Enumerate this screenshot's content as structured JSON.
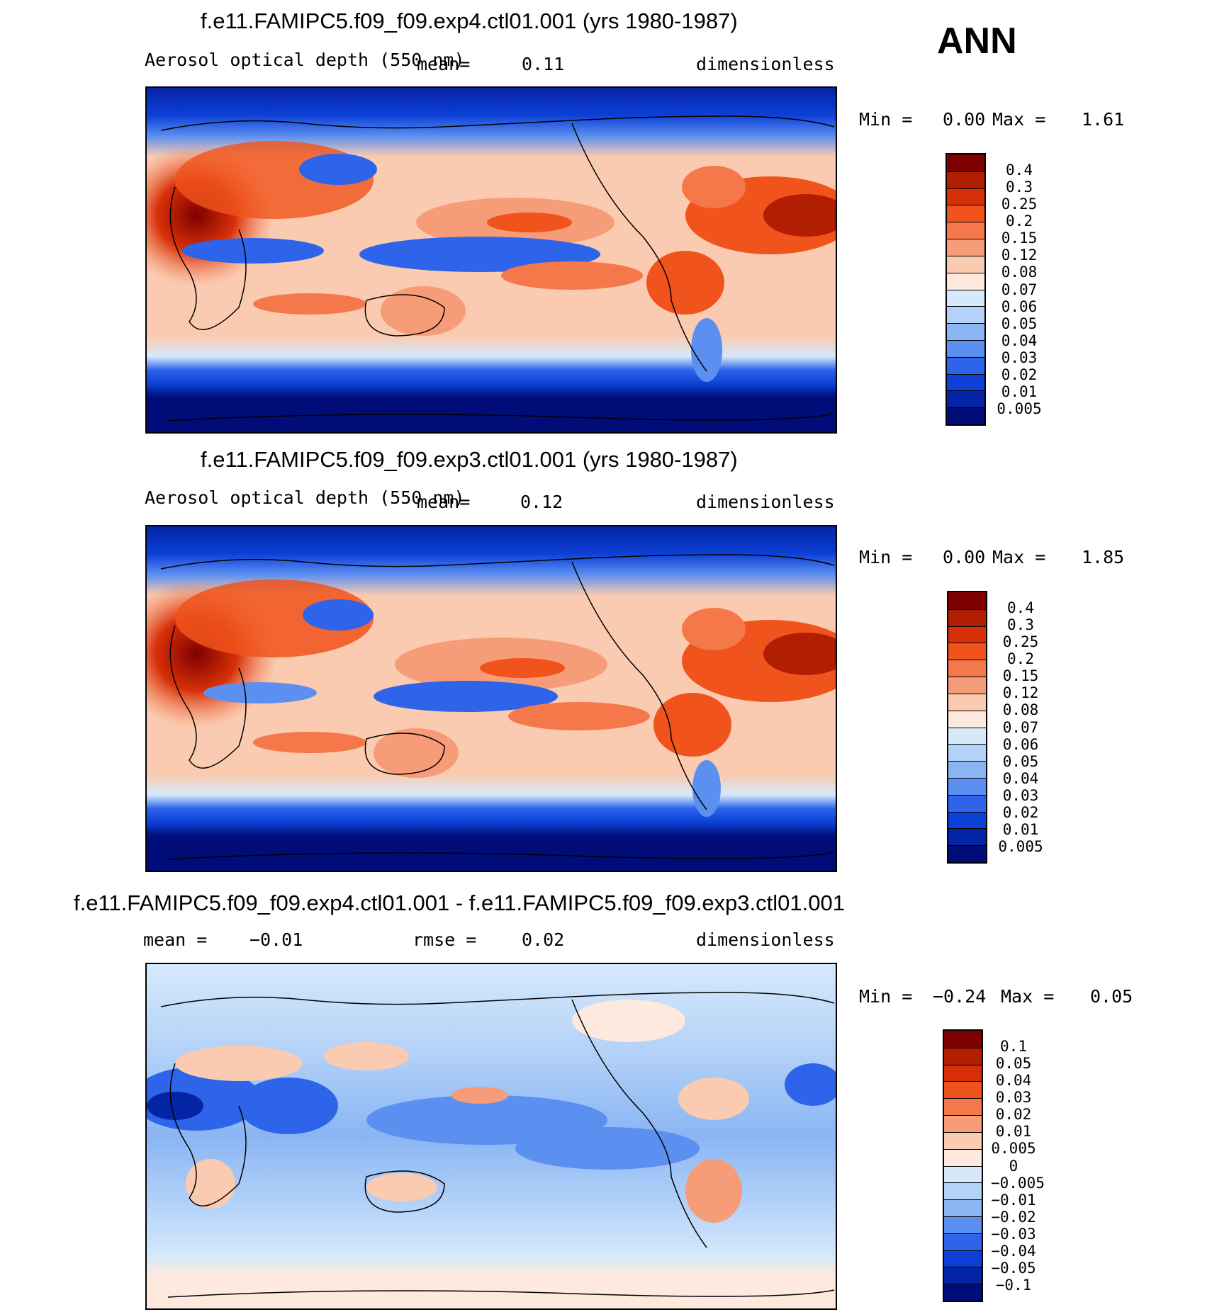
{
  "season": "ANN",
  "panels": [
    {
      "title": "f.e11.FAMIPC5.f09_f09.exp4.ctl01.001 (yrs 1980-1987)",
      "field_label": "Aerosol optical depth (550 nm)",
      "mean_label": "mean=",
      "mean_value": "0.11",
      "units": "dimensionless",
      "min_label": "Min =",
      "min_value": "0.00",
      "max_label": "Max =",
      "max_value": "1.61",
      "colorbar": {
        "labels": [
          "0.4",
          "0.3",
          "0.25",
          "0.2",
          "0.15",
          "0.12",
          "0.08",
          "0.07",
          "0.06",
          "0.05",
          "0.04",
          "0.03",
          "0.02",
          "0.01",
          "0.005"
        ],
        "colors": [
          "#7f0000",
          "#b21e02",
          "#d73008",
          "#f0541c",
          "#f5784a",
          "#f79c78",
          "#facbb0",
          "#fde9dd",
          "#d6e9fb",
          "#b4d2f8",
          "#8ab5f3",
          "#5b8ff0",
          "#2d64ea",
          "#0d40d6",
          "#0424a6",
          "#000d78"
        ]
      }
    },
    {
      "title": "f.e11.FAMIPC5.f09_f09.exp3.ctl01.001 (yrs 1980-1987)",
      "field_label": "Aerosol optical depth (550 nm)",
      "mean_label": "mean=",
      "mean_value": "0.12",
      "units": "dimensionless",
      "min_label": "Min =",
      "min_value": "0.00",
      "max_label": "Max =",
      "max_value": "1.85",
      "colorbar": {
        "labels": [
          "0.4",
          "0.3",
          "0.25",
          "0.2",
          "0.15",
          "0.12",
          "0.08",
          "0.07",
          "0.06",
          "0.05",
          "0.04",
          "0.03",
          "0.02",
          "0.01",
          "0.005"
        ],
        "colors": [
          "#7f0000",
          "#b21e02",
          "#d73008",
          "#f0541c",
          "#f5784a",
          "#f79c78",
          "#facbb0",
          "#fde9dd",
          "#d6e9fb",
          "#b4d2f8",
          "#8ab5f3",
          "#5b8ff0",
          "#2d64ea",
          "#0d40d6",
          "#0424a6",
          "#000d78"
        ]
      }
    },
    {
      "title": "f.e11.FAMIPC5.f09_f09.exp4.ctl01.001 - f.e11.FAMIPC5.f09_f09.exp3.ctl01.001",
      "mean_label": "mean =",
      "mean_value": "−0.01",
      "rmse_label": "rmse =",
      "rmse_value": "0.02",
      "units": "dimensionless",
      "min_label": "Min =",
      "min_value": "−0.24",
      "max_label": "Max =",
      "max_value": "0.05",
      "colorbar": {
        "labels": [
          "0.1",
          "0.05",
          "0.04",
          "0.03",
          "0.02",
          "0.01",
          "0.005",
          "0",
          "−0.005",
          "−0.01",
          "−0.02",
          "−0.03",
          "−0.04",
          "−0.05",
          "−0.1"
        ],
        "colors": [
          "#7f0000",
          "#b21e02",
          "#d73008",
          "#f0541c",
          "#f5784a",
          "#f79c78",
          "#facbb0",
          "#fde9dd",
          "#d6e9fb",
          "#b4d2f8",
          "#8ab5f3",
          "#5b8ff0",
          "#2d64ea",
          "#0d40d6",
          "#0424a6",
          "#000d78"
        ]
      }
    }
  ]
}
